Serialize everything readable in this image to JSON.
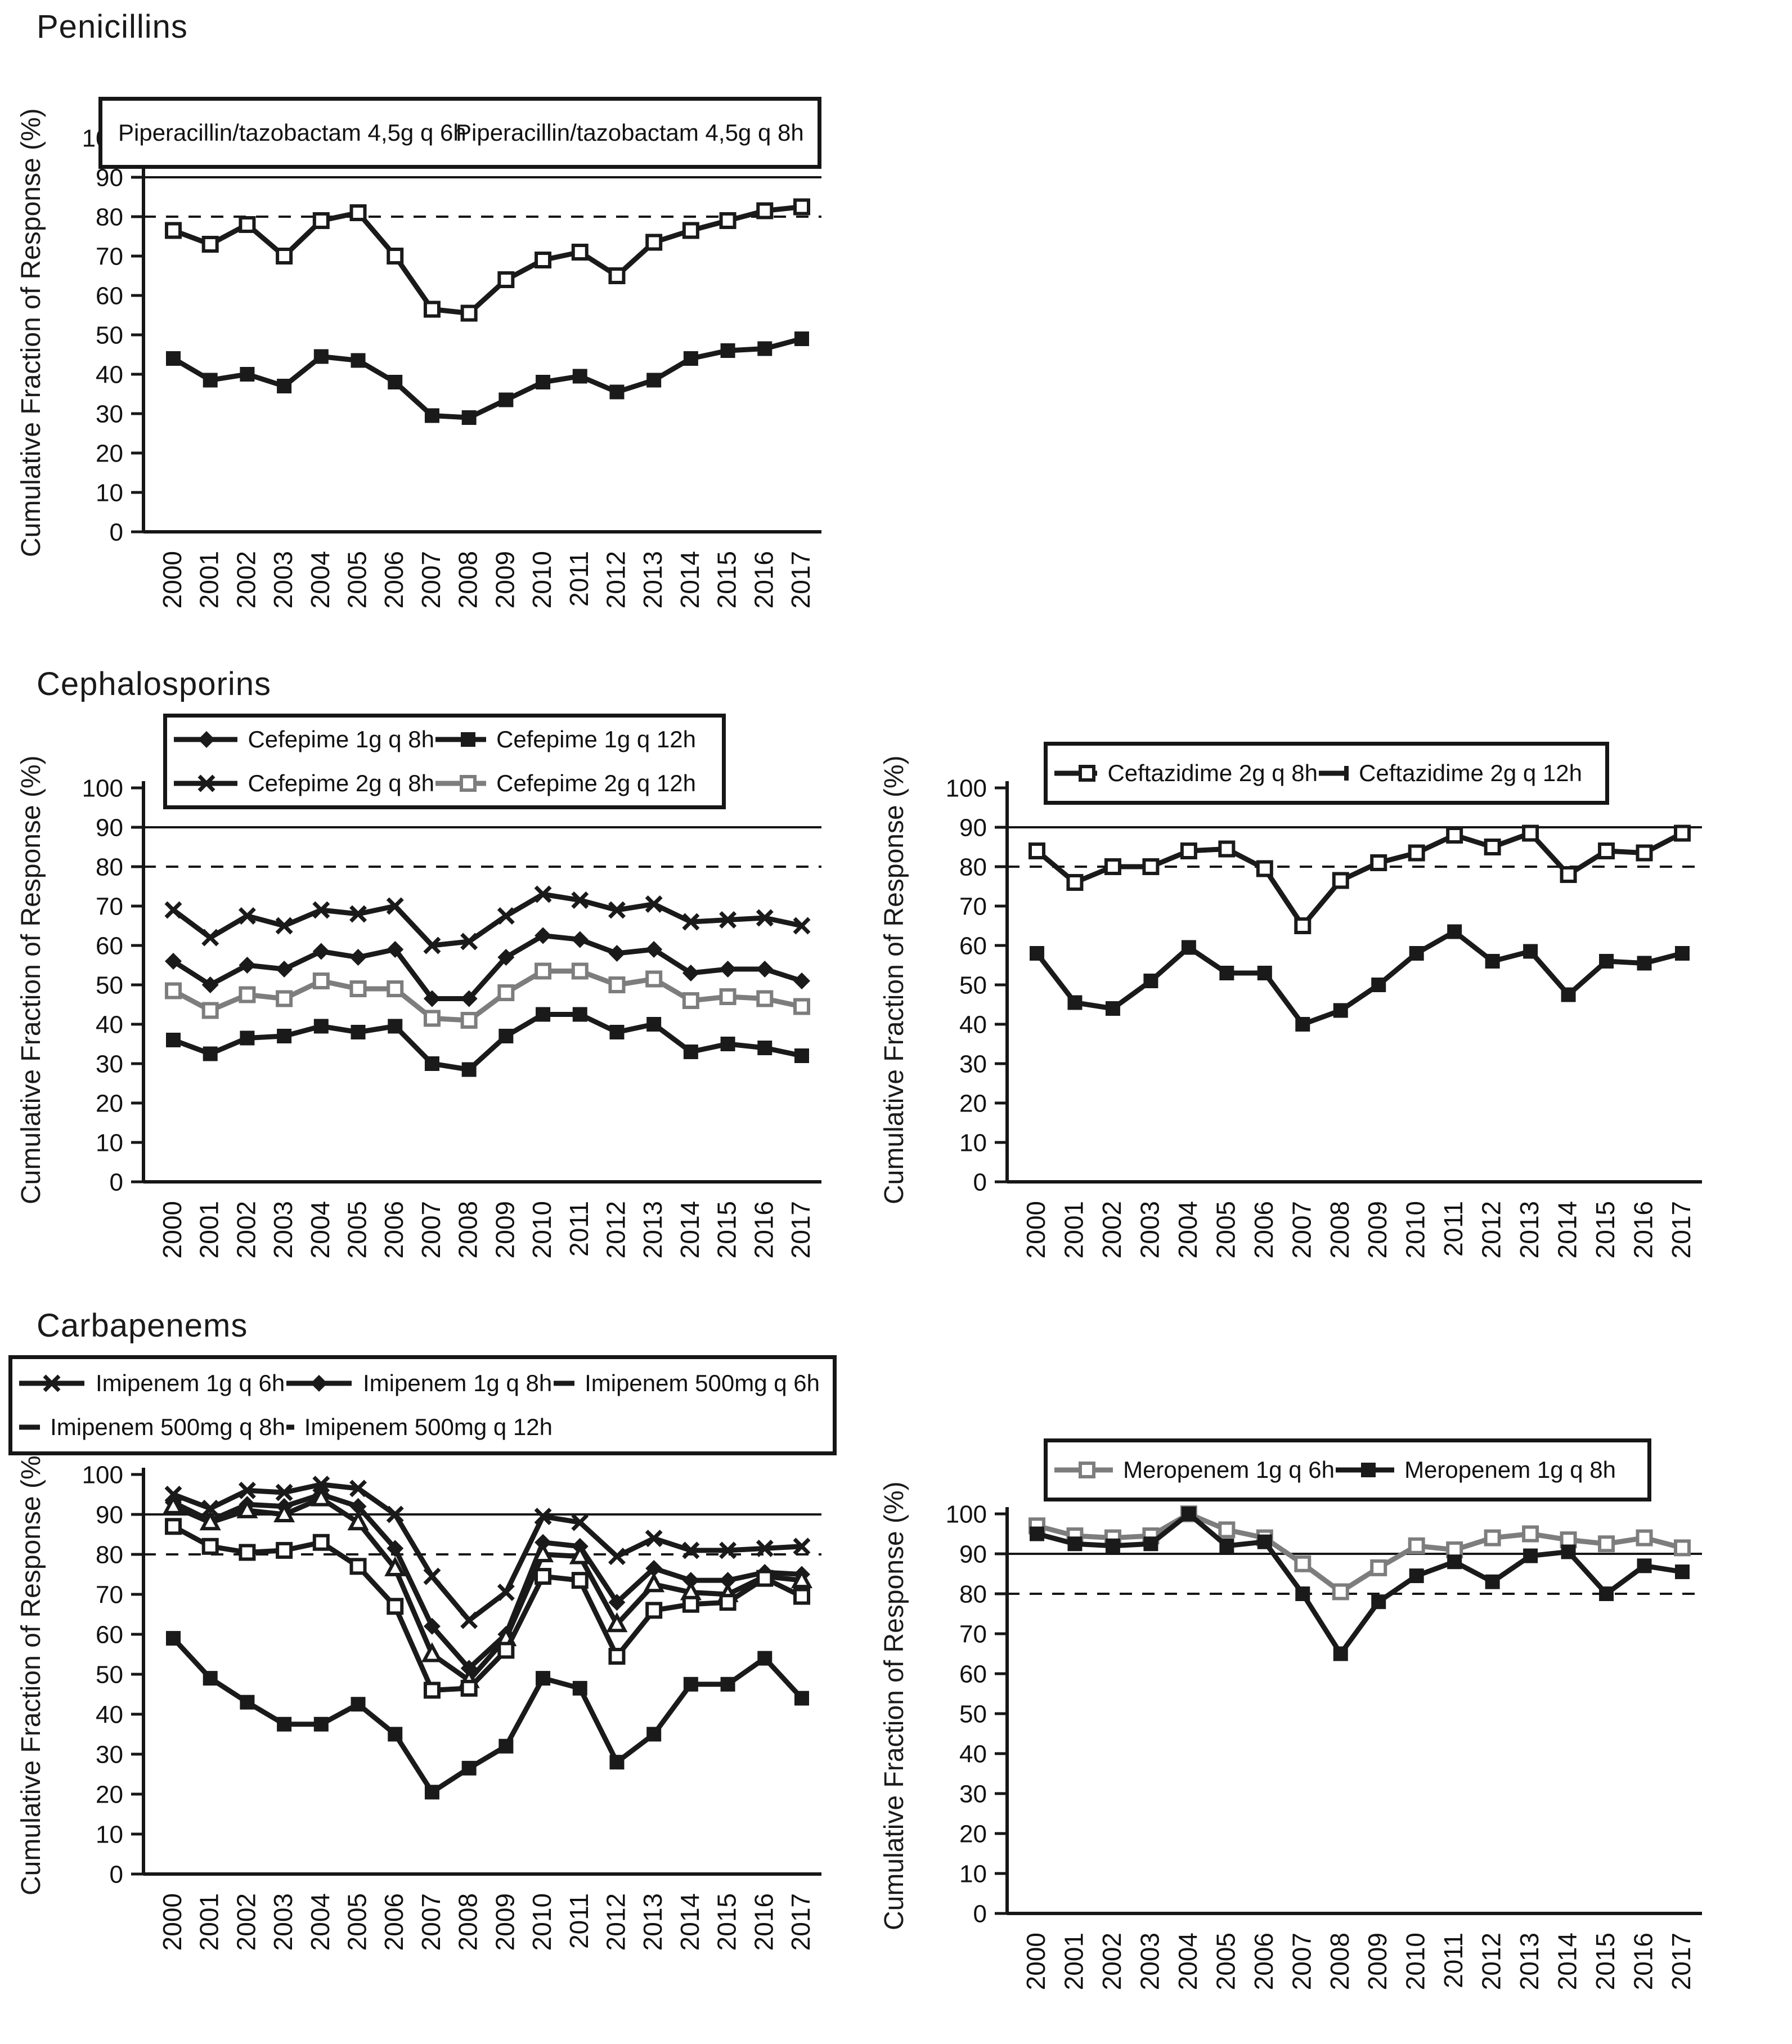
{
  "sections": [
    {
      "title": "Penicillins"
    },
    {
      "title": "Cephalosporins"
    },
    {
      "title": "Carbapenems"
    }
  ],
  "colors": {
    "black": "#1a1a1a",
    "gray": "#7d7d7d",
    "threshold_solid": 90,
    "threshold_dashed": 80
  },
  "chart_data": [
    {
      "id": "penicillins",
      "type": "line",
      "ylabel": "Cumulative Fraction of Response (%)",
      "ylim": [
        0,
        100
      ],
      "ytick_step": 10,
      "grid": "off",
      "legend_position": "top",
      "ref_lines": [
        {
          "y": 90,
          "style": "solid"
        },
        {
          "y": 80,
          "style": "dashed"
        }
      ],
      "x": [
        2000,
        2001,
        2002,
        2003,
        2004,
        2005,
        2006,
        2007,
        2008,
        2009,
        2010,
        2011,
        2012,
        2013,
        2014,
        2015,
        2016,
        2017
      ],
      "series": [
        {
          "name": "Piperacillin/tazobactam 4,5g q 6h",
          "marker": "open-square",
          "color": "#1a1a1a",
          "values": [
            76.5,
            73,
            78,
            70,
            79,
            81,
            70,
            56.5,
            55.5,
            64,
            69,
            71,
            65,
            73.5,
            76.5,
            79,
            81.5,
            82.5
          ]
        },
        {
          "name": "Piperacillin/tazobactam 4,5g q 8h",
          "marker": "filled-square",
          "color": "#1a1a1a",
          "values": [
            44,
            38.5,
            40,
            37,
            44.5,
            43.5,
            38,
            29.5,
            29,
            33.5,
            38,
            39.5,
            35.5,
            38.5,
            44,
            46,
            46.5,
            49
          ]
        }
      ]
    },
    {
      "id": "cefepime",
      "type": "line",
      "ylabel": "Cumulative Fraction of Response (%)",
      "ylim": [
        0,
        100
      ],
      "ytick_step": 10,
      "grid": "off",
      "legend_position": "top",
      "ref_lines": [
        {
          "y": 90,
          "style": "solid"
        },
        {
          "y": 80,
          "style": "dashed"
        }
      ],
      "x": [
        2000,
        2001,
        2002,
        2003,
        2004,
        2005,
        2006,
        2007,
        2008,
        2009,
        2010,
        2011,
        2012,
        2013,
        2014,
        2015,
        2016,
        2017
      ],
      "series": [
        {
          "name": "Cefepime 1g q 8h",
          "marker": "filled-diamond",
          "color": "#1a1a1a",
          "values": [
            56,
            50,
            55,
            54,
            58.5,
            57,
            59,
            46.5,
            46.5,
            57,
            62.5,
            61.5,
            58,
            59,
            53,
            54,
            54,
            51
          ]
        },
        {
          "name": "Cefepime 1g q 12h",
          "marker": "filled-square",
          "color": "#1a1a1a",
          "values": [
            36,
            32.5,
            36.5,
            37,
            39.5,
            38,
            39.5,
            30,
            28.5,
            37,
            42.5,
            42.5,
            38,
            40,
            33,
            35,
            34,
            32
          ]
        },
        {
          "name": "Cefepime 2g q 8h",
          "marker": "x-cross",
          "color": "#1a1a1a",
          "values": [
            69,
            62,
            67.5,
            65,
            69,
            68,
            70,
            60,
            61,
            67.5,
            73,
            71.5,
            69,
            70.5,
            66,
            66.5,
            67,
            65
          ]
        },
        {
          "name": "Cefepime 2g q 12h",
          "marker": "open-square",
          "color": "#7d7d7d",
          "values": [
            48.5,
            43.5,
            47.5,
            46.5,
            51,
            49,
            49,
            41.5,
            41,
            48,
            53.5,
            53.5,
            50,
            51.5,
            46,
            47,
            46.5,
            44.5
          ]
        }
      ]
    },
    {
      "id": "ceftazidime",
      "type": "line",
      "ylabel": "Cumulative Fraction of Response (%)",
      "ylim": [
        0,
        100
      ],
      "ytick_step": 10,
      "grid": "off",
      "legend_position": "top",
      "ref_lines": [
        {
          "y": 90,
          "style": "solid"
        },
        {
          "y": 80,
          "style": "dashed"
        }
      ],
      "x": [
        2000,
        2001,
        2002,
        2003,
        2004,
        2005,
        2006,
        2007,
        2008,
        2009,
        2010,
        2011,
        2012,
        2013,
        2014,
        2015,
        2016,
        2017
      ],
      "series": [
        {
          "name": "Ceftazidime 2g q 8h",
          "marker": "open-square",
          "color": "#1a1a1a",
          "values": [
            84,
            76,
            80,
            80,
            84,
            84.5,
            79.5,
            65,
            76.5,
            81,
            83.5,
            88,
            85,
            88.5,
            78,
            84,
            83.5,
            88.5
          ]
        },
        {
          "name": "Ceftazidime 2g q 12h",
          "marker": "filled-square",
          "color": "#1a1a1a",
          "values": [
            58,
            45.5,
            44,
            51,
            59.5,
            53,
            53,
            40,
            43.5,
            50,
            58,
            63.5,
            56,
            58.5,
            47.5,
            56,
            55.5,
            58
          ]
        }
      ]
    },
    {
      "id": "imipenem",
      "type": "line",
      "ylabel": "Cumulative Fraction of Response (%)",
      "ylim": [
        0,
        100
      ],
      "ytick_step": 10,
      "grid": "off",
      "legend_position": "top",
      "ref_lines": [
        {
          "y": 90,
          "style": "solid"
        },
        {
          "y": 80,
          "style": "dashed"
        }
      ],
      "x": [
        2000,
        2001,
        2002,
        2003,
        2004,
        2005,
        2006,
        2007,
        2008,
        2009,
        2010,
        2011,
        2012,
        2013,
        2014,
        2015,
        2016,
        2017
      ],
      "series": [
        {
          "name": "Imipenem 1g q 6h",
          "marker": "x-cross",
          "color": "#1a1a1a",
          "values": [
            95,
            91.5,
            96,
            95.5,
            97.5,
            96.5,
            90,
            74.5,
            63.5,
            70.5,
            89.5,
            88,
            79.5,
            84,
            81,
            81,
            81.5,
            82
          ]
        },
        {
          "name": "Imipenem 1g q 8h",
          "marker": "filled-diamond",
          "color": "#1a1a1a",
          "values": [
            93,
            88.5,
            92.5,
            92,
            95,
            92,
            81.5,
            62,
            51.5,
            60,
            83,
            82,
            68,
            76.5,
            73.5,
            73.5,
            75.5,
            75
          ]
        },
        {
          "name": "Imipenem 500mg q 6h",
          "marker": "open-triangle",
          "color": "#1a1a1a",
          "values": [
            92,
            88,
            91,
            90,
            94,
            88,
            76.5,
            55,
            48.5,
            59,
            80,
            79.5,
            62.5,
            72.5,
            70.5,
            70,
            74.5,
            73.5
          ]
        },
        {
          "name": "Imipenem 500mg q 8h",
          "marker": "open-square",
          "color": "#1a1a1a",
          "values": [
            87,
            82,
            80.5,
            81,
            83,
            77,
            67,
            46,
            46.5,
            56,
            74.5,
            73.5,
            54.5,
            66,
            67.5,
            68,
            74,
            69.5
          ]
        },
        {
          "name": "Imipenem 500mg q 12h",
          "marker": "filled-square",
          "color": "#1a1a1a",
          "values": [
            59,
            49,
            43,
            37.5,
            37.5,
            42.5,
            35,
            20.5,
            26.5,
            32,
            49,
            46.5,
            28,
            35,
            47.5,
            47.5,
            54,
            44
          ]
        }
      ]
    },
    {
      "id": "meropenem",
      "type": "line",
      "ylabel": "Cumulative Fraction of Response (%)",
      "ylim": [
        0,
        100
      ],
      "ytick_step": 10,
      "grid": "off",
      "legend_position": "top",
      "ref_lines": [
        {
          "y": 90,
          "style": "solid"
        },
        {
          "y": 80,
          "style": "dashed"
        }
      ],
      "x": [
        2000,
        2001,
        2002,
        2003,
        2004,
        2005,
        2006,
        2007,
        2008,
        2009,
        2010,
        2011,
        2012,
        2013,
        2014,
        2015,
        2016,
        2017
      ],
      "series": [
        {
          "name": "Meropenem 1g q 6h",
          "marker": "open-square",
          "color": "#7d7d7d",
          "values": [
            97,
            94.5,
            94,
            94.5,
            100,
            96,
            94,
            87.5,
            80.5,
            86.5,
            92,
            91,
            94,
            95,
            93.5,
            92.5,
            94,
            91.5
          ]
        },
        {
          "name": "Meropenem 1g q 8h",
          "marker": "filled-square",
          "color": "#1a1a1a",
          "values": [
            95,
            92.5,
            92,
            92.5,
            100,
            92,
            93,
            80,
            65,
            78,
            84.5,
            88,
            83,
            89.5,
            90.5,
            80,
            87,
            85.5
          ]
        }
      ]
    }
  ]
}
